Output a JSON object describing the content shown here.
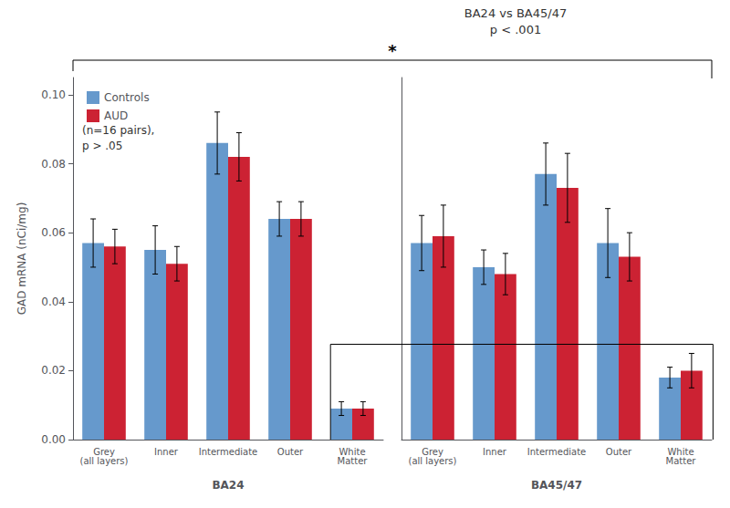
{
  "chart_data": [
    {
      "type": "bar",
      "xlabel": "BA24",
      "ylabel": "GAD mRNA (nCi/mg)",
      "categories": [
        "Grey\n(all layers)",
        "Inner",
        "Intermediate",
        "Outer",
        "White\nMatter"
      ],
      "series": [
        {
          "name": "Controls",
          "color": "#6699CC",
          "values": [
            0.057,
            0.055,
            0.086,
            0.064,
            0.009
          ],
          "errors": [
            0.007,
            0.007,
            0.009,
            0.005,
            0.002
          ]
        },
        {
          "name": "AUD",
          "color": "#CC2233",
          "values": [
            0.056,
            0.051,
            0.082,
            0.064,
            0.009
          ],
          "errors": [
            0.005,
            0.005,
            0.007,
            0.005,
            0.002
          ]
        }
      ],
      "ylim": [
        0,
        0.105
      ],
      "yticks": [
        {
          "value": 0,
          "label": "0.00"
        },
        0.02,
        0.04,
        0.06,
        0.08,
        {
          "value": 0.1,
          "label": "0.10"
        }
      ],
      "grid": false,
      "legend": "upper left",
      "annotations": [
        "(n=16 pairs),",
        "p > .05"
      ]
    },
    {
      "type": "bar",
      "xlabel": "BA45/47",
      "categories": [
        "Grey\n(all layers)",
        "Inner",
        "Intermediate",
        "Outer",
        "White\nMatter"
      ],
      "series": [
        {
          "name": "Controls",
          "color": "#6699CC",
          "values": [
            0.057,
            0.05,
            0.077,
            0.057,
            0.018
          ],
          "errors": [
            0.008,
            0.005,
            0.009,
            0.01,
            0.003
          ]
        },
        {
          "name": "AUD",
          "color": "#CC2233",
          "values": [
            0.059,
            0.048,
            0.073,
            0.053,
            0.02
          ],
          "errors": [
            0.009,
            0.006,
            0.01,
            0.007,
            0.005
          ]
        }
      ],
      "ylim": [
        0,
        0.105
      ],
      "yticks": [
        {
          "value": 0,
          "label": "0.00"
        },
        0.02,
        0.04,
        0.06,
        0.08,
        {
          "value": 0.1,
          "label": "0.10"
        }
      ],
      "grid": false,
      "tick_labels": "x",
      "annotations": [
        "BA24 vs BA45/47",
        "p < .001",
        "*"
      ]
    }
  ]
}
